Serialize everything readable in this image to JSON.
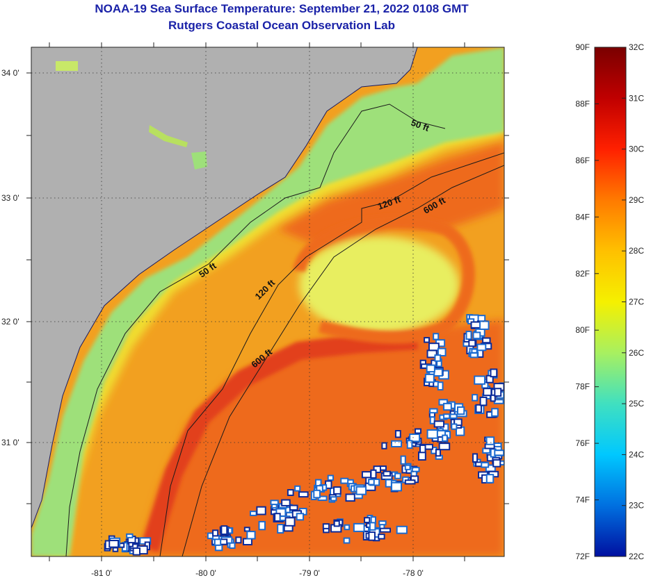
{
  "title_line1": "NOAA-19 Sea Surface Temperature:  September 21, 2022 0108 GMT",
  "title_line2": "Rutgers Coastal Ocean Observation Lab",
  "map": {
    "lat_ticks": [
      "34 0'",
      "33 0'",
      "32 0'",
      "31 0'"
    ],
    "lon_ticks": [
      "-81 0'",
      "-80 0'",
      "-79 0'",
      "-78 0'"
    ],
    "contour_labels": [
      "50 ft",
      "50 ft",
      "120 ft",
      "120 ft",
      "600 ft",
      "600 ft"
    ],
    "colors": {
      "land": "#b0b0b0",
      "cloud": "#ffffff",
      "shelf_water": "#9ee07a",
      "mid_shelf": "#f0e030",
      "gulf_stream": "#ee6a1a",
      "gulf_stream_core": "#e2401a"
    }
  },
  "colorbar": {
    "fahrenheit": [
      "90F",
      "88F",
      "86F",
      "84F",
      "82F",
      "80F",
      "78F",
      "76F",
      "74F",
      "72F"
    ],
    "celsius": [
      "32C",
      "31C",
      "30C",
      "29C",
      "28C",
      "27C",
      "26C",
      "25C",
      "24C",
      "23C",
      "22C"
    ],
    "gradient": [
      "#7a0000",
      "#c00000",
      "#ff2000",
      "#ff7a00",
      "#ffc000",
      "#f5f000",
      "#a8f060",
      "#40e0c0",
      "#00c8ff",
      "#0070e0",
      "#0010a0"
    ]
  }
}
